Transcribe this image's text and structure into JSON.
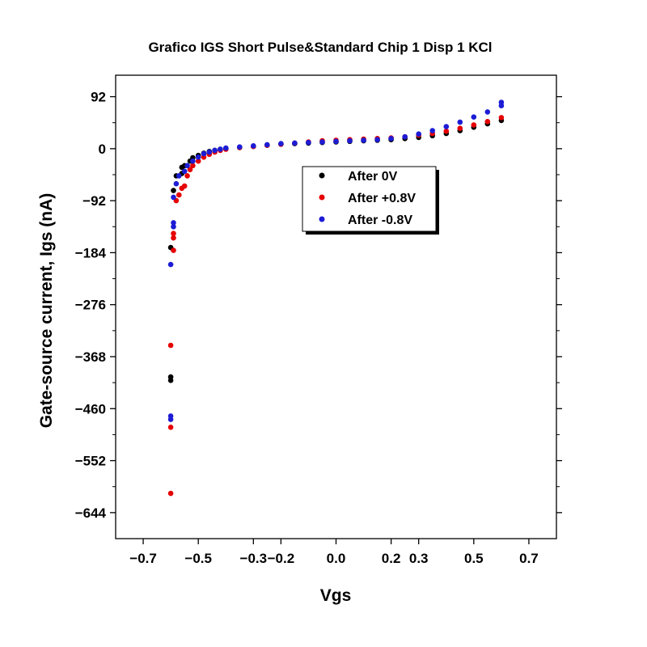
{
  "chart_data": {
    "type": "scatter",
    "title": "Grafico IGS Short Pulse&Standard Chip 1 Disp 1 KCl",
    "xlabel": "Vgs",
    "ylabel": "Gate-source current, Igs (nA)",
    "xlim": [
      -0.8,
      0.8
    ],
    "ylim": [
      -690,
      130
    ],
    "x_ticks": [
      -0.7,
      -0.5,
      -0.3,
      -0.2,
      0.0,
      0.2,
      0.3,
      0.5,
      0.7
    ],
    "x_tick_labels": [
      "−0.7",
      "−0.5",
      "−0.3",
      "−0.2",
      "0.0",
      "0.2",
      "0.3",
      "0.5",
      "0.7"
    ],
    "y_ticks": [
      92,
      0,
      -92,
      -184,
      -276,
      -368,
      -460,
      -552,
      -644
    ],
    "y_tick_labels": [
      "92",
      "0",
      "−92",
      "−184",
      "−276",
      "−368",
      "−460",
      "−552",
      "−644"
    ],
    "grid": false,
    "legend_position": "upper-center",
    "series": [
      {
        "name": "After 0V",
        "color": "#000000",
        "points": [
          [
            -0.6,
            -175
          ],
          [
            -0.6,
            -404
          ],
          [
            -0.6,
            -410
          ],
          [
            -0.59,
            -74
          ],
          [
            -0.58,
            -48
          ],
          [
            -0.56,
            -33
          ],
          [
            -0.56,
            -44
          ],
          [
            -0.55,
            -30
          ],
          [
            -0.53,
            -22
          ],
          [
            -0.52,
            -16
          ],
          [
            -0.5,
            -12
          ],
          [
            -0.48,
            -8
          ],
          [
            -0.46,
            -5
          ],
          [
            -0.44,
            -3
          ],
          [
            -0.42,
            -1
          ],
          [
            -0.4,
            0
          ],
          [
            -0.35,
            2
          ],
          [
            -0.3,
            4
          ],
          [
            -0.25,
            6
          ],
          [
            -0.2,
            8
          ],
          [
            -0.15,
            9
          ],
          [
            -0.1,
            10
          ],
          [
            -0.05,
            11
          ],
          [
            0.0,
            12
          ],
          [
            0.05,
            13
          ],
          [
            0.1,
            14
          ],
          [
            0.15,
            15
          ],
          [
            0.2,
            16
          ],
          [
            0.25,
            18
          ],
          [
            0.3,
            20
          ],
          [
            0.35,
            23
          ],
          [
            0.4,
            27
          ],
          [
            0.45,
            32
          ],
          [
            0.5,
            38
          ],
          [
            0.55,
            44
          ],
          [
            0.6,
            50
          ]
        ]
      },
      {
        "name": "After +0.8V",
        "color": "#e60000",
        "points": [
          [
            -0.6,
            -348
          ],
          [
            -0.6,
            -493
          ],
          [
            -0.6,
            -610
          ],
          [
            -0.59,
            -180
          ],
          [
            -0.59,
            -150
          ],
          [
            -0.59,
            -158
          ],
          [
            -0.58,
            -92
          ],
          [
            -0.57,
            -82
          ],
          [
            -0.56,
            -70
          ],
          [
            -0.55,
            -66
          ],
          [
            -0.54,
            -48
          ],
          [
            -0.53,
            -37
          ],
          [
            -0.52,
            -30
          ],
          [
            -0.5,
            -22
          ],
          [
            -0.48,
            -15
          ],
          [
            -0.46,
            -10
          ],
          [
            -0.44,
            -6
          ],
          [
            -0.42,
            -3
          ],
          [
            -0.4,
            -1
          ],
          [
            -0.35,
            2
          ],
          [
            -0.3,
            4
          ],
          [
            -0.25,
            6
          ],
          [
            -0.2,
            8
          ],
          [
            -0.15,
            10
          ],
          [
            -0.1,
            12
          ],
          [
            -0.05,
            14
          ],
          [
            0.0,
            15
          ],
          [
            0.05,
            16
          ],
          [
            0.1,
            17
          ],
          [
            0.15,
            18
          ],
          [
            0.2,
            19
          ],
          [
            0.25,
            21
          ],
          [
            0.3,
            24
          ],
          [
            0.35,
            27
          ],
          [
            0.4,
            31
          ],
          [
            0.45,
            36
          ],
          [
            0.5,
            42
          ],
          [
            0.55,
            48
          ],
          [
            0.6,
            55
          ]
        ]
      },
      {
        "name": "After -0.8V",
        "color": "#1c1cd6",
        "points": [
          [
            -0.6,
            -205
          ],
          [
            -0.6,
            -473
          ],
          [
            -0.6,
            -479
          ],
          [
            -0.59,
            -138
          ],
          [
            -0.59,
            -131
          ],
          [
            -0.59,
            -86
          ],
          [
            -0.58,
            -62
          ],
          [
            -0.57,
            -48
          ],
          [
            -0.55,
            -40
          ],
          [
            -0.54,
            -30
          ],
          [
            -0.52,
            -22
          ],
          [
            -0.5,
            -15
          ],
          [
            -0.48,
            -9
          ],
          [
            -0.46,
            -6
          ],
          [
            -0.44,
            -3
          ],
          [
            -0.42,
            -1
          ],
          [
            -0.4,
            1
          ],
          [
            -0.35,
            3
          ],
          [
            -0.3,
            5
          ],
          [
            -0.25,
            7
          ],
          [
            -0.2,
            9
          ],
          [
            -0.15,
            10
          ],
          [
            -0.1,
            11
          ],
          [
            -0.05,
            12
          ],
          [
            0.0,
            13
          ],
          [
            0.05,
            14
          ],
          [
            0.1,
            15
          ],
          [
            0.15,
            16
          ],
          [
            0.2,
            18
          ],
          [
            0.25,
            21
          ],
          [
            0.3,
            26
          ],
          [
            0.35,
            32
          ],
          [
            0.4,
            39
          ],
          [
            0.45,
            47
          ],
          [
            0.5,
            56
          ],
          [
            0.55,
            65
          ],
          [
            0.6,
            76
          ],
          [
            0.6,
            82
          ]
        ]
      }
    ]
  }
}
